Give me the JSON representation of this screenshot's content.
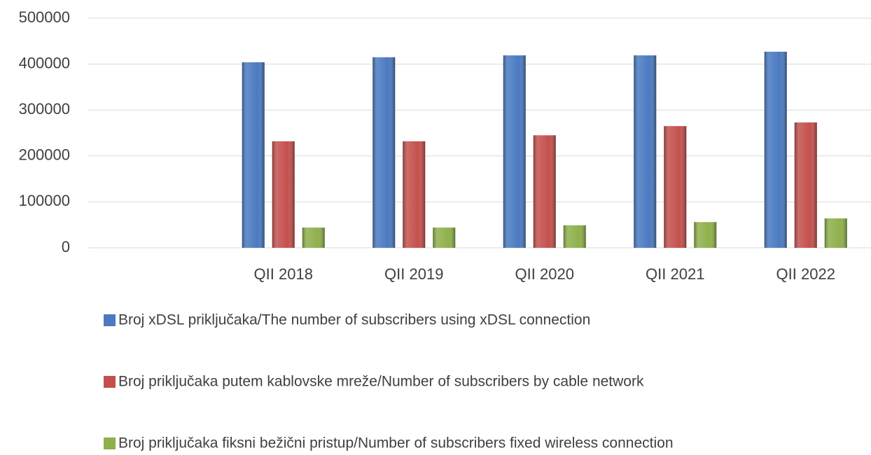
{
  "chart_data": {
    "type": "bar",
    "categories": [
      null,
      "QII 2018",
      "QII 2019",
      "QII 2020",
      "QII 2021",
      "QII 2022"
    ],
    "series": [
      {
        "name": "Broj  xDSL priključaka/The number of subscribers using  xDSL connection",
        "color": "#4a7ac0",
        "values": [
          null,
          404000,
          415000,
          419000,
          419000,
          427000
        ]
      },
      {
        "name": "Broj priključaka putem  kablovske mreže/Number of subscribers by cable network",
        "color": "#c4504d",
        "values": [
          null,
          232000,
          232000,
          245000,
          265000,
          273000
        ]
      },
      {
        "name": "Broj priključaka fiksni bežični pristup/Number of subscribers fixed wireless connection",
        "color": "#8fb04a",
        "values": [
          null,
          44000,
          44000,
          49000,
          56000,
          64000
        ]
      }
    ],
    "ylim": [
      0,
      500000
    ],
    "yticks": [
      0,
      100000,
      200000,
      300000,
      400000,
      500000
    ],
    "grid": true,
    "legend": "bottom"
  }
}
